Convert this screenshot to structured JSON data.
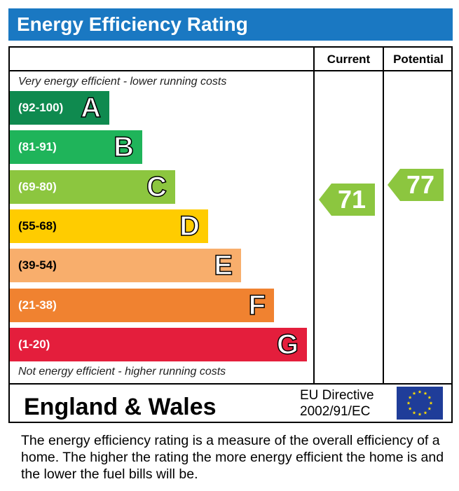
{
  "header": {
    "title": "Energy Efficiency Rating"
  },
  "columns": {
    "current_label": "Current",
    "potential_label": "Potential"
  },
  "captions": {
    "top": "Very energy efficient - lower running costs",
    "bottom": "Not energy efficient - higher running costs"
  },
  "chart_data": {
    "type": "bar",
    "title": "Energy Efficiency Rating",
    "categories": [
      "A",
      "B",
      "C",
      "D",
      "E",
      "F",
      "G"
    ],
    "ranges": [
      "(92-100)",
      "(81-91)",
      "(69-80)",
      "(55-68)",
      "(39-54)",
      "(21-38)",
      "(1-20)"
    ],
    "colors": [
      "#0f8a4f",
      "#1fb45a",
      "#8cc63f",
      "#ffcc00",
      "#f8ae6c",
      "#f08230",
      "#e41e3c"
    ],
    "current": {
      "value": 71,
      "band": "C",
      "color": "#8cc63f"
    },
    "potential": {
      "value": 77,
      "band": "C",
      "color": "#8cc63f"
    }
  },
  "footer": {
    "region": "England & Wales",
    "directive_line1": "EU Directive",
    "directive_line2": "2002/91/EC"
  },
  "description": "The energy efficiency rating is a measure of the overall efficiency of a home.  The higher the rating the more energy efficient the home is and the lower the fuel bills will be."
}
